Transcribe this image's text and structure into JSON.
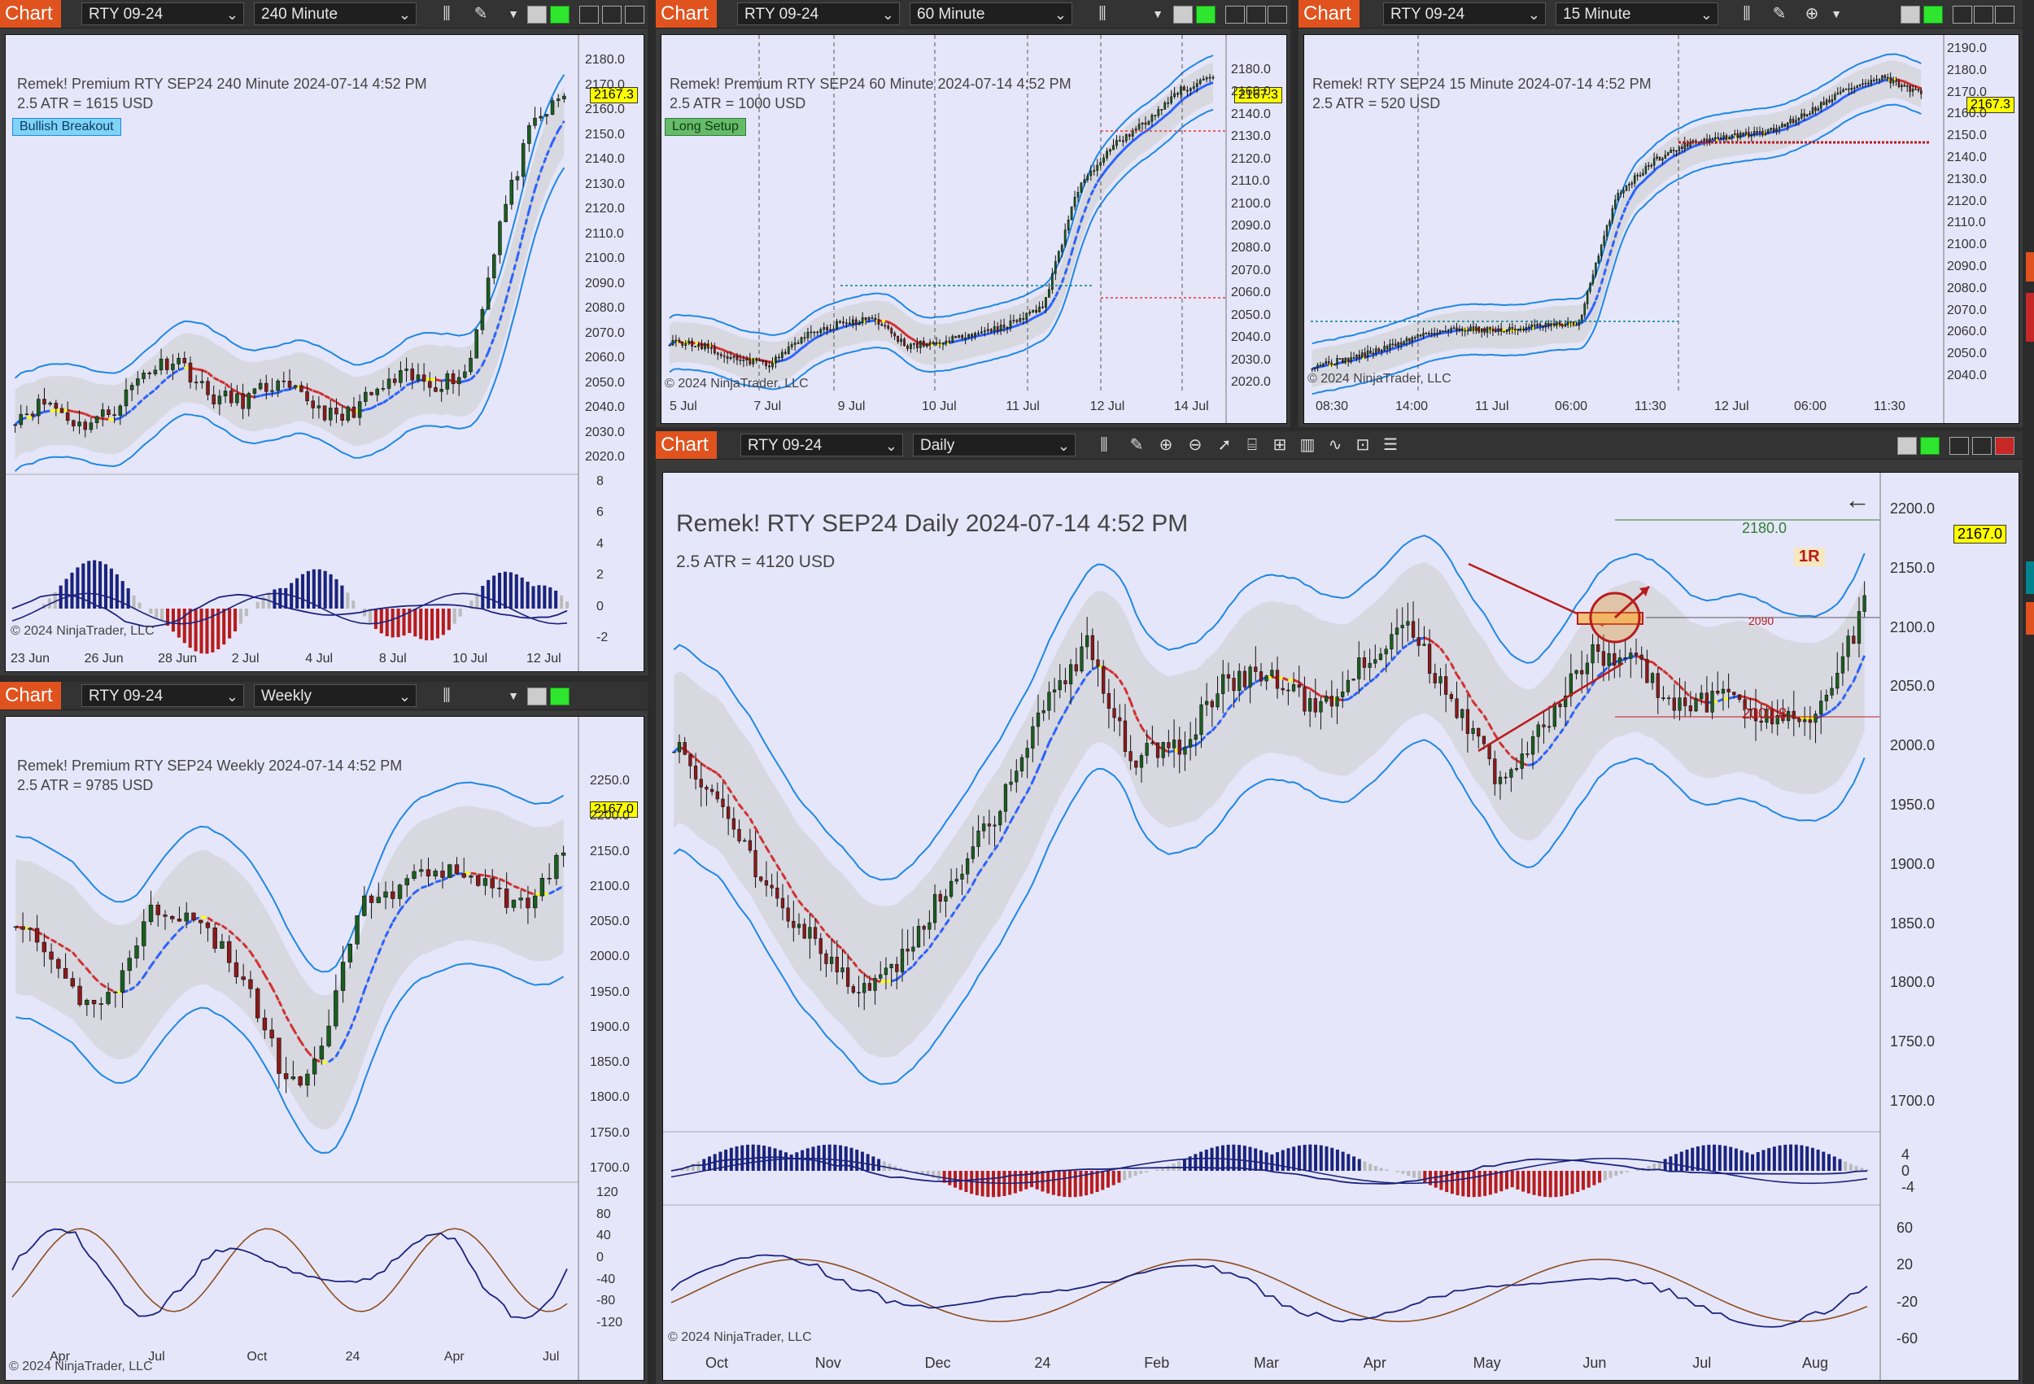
{
  "charts": [
    {
      "id": "w240",
      "tab": "Chart",
      "instrument": "RTY 09-24",
      "period": "240 Minute",
      "header": "Remek!  Premium  RTY SEP24  240 Minute  2024-07-14 4:52 PM",
      "atr": "2.5 ATR = 1615 USD",
      "badge": "Bullish Breakout",
      "price_tag": "2167.3",
      "copyright": "© 2024 NinjaTrader, LLC",
      "y_ticks": [
        "2180.0",
        "2170.0",
        "2160.0",
        "2150.0",
        "2140.0",
        "2130.0",
        "2120.0",
        "2110.0",
        "2100.0",
        "2090.0",
        "2080.0",
        "2070.0",
        "2060.0",
        "2050.0",
        "2040.0",
        "2030.0",
        "2020.0"
      ],
      "y2_ticks": [
        "8",
        "6",
        "4",
        "2",
        "0",
        "-2"
      ],
      "x_ticks": [
        "23 Jun",
        "26 Jun",
        "28 Jun",
        "2 Jul",
        "4 Jul",
        "8 Jul",
        "10 Jul",
        "12 Jul"
      ]
    },
    {
      "id": "w60",
      "tab": "Chart",
      "instrument": "RTY 09-24",
      "period": "60 Minute",
      "header": "Remek!  Premium  RTY SEP24  60 Minute  2024-07-14 4:52 PM",
      "atr": "2.5 ATR = 1000 USD",
      "badge": "Long Setup",
      "price_tag": "2167.3",
      "copyright": "© 2024 NinjaTrader, LLC",
      "y_ticks": [
        "2180.0",
        "2160.0",
        "2140.0",
        "2130.0",
        "2120.0",
        "2110.0",
        "2100.0",
        "2090.0",
        "2080.0",
        "2070.0",
        "2060.0",
        "2050.0",
        "2040.0",
        "2030.0",
        "2020.0"
      ],
      "x_ticks": [
        "5 Jul",
        "7 Jul",
        "9 Jul",
        "10 Jul",
        "11 Jul",
        "12 Jul",
        "14 Jul"
      ]
    },
    {
      "id": "w15",
      "tab": "Chart",
      "instrument": "RTY 09-24",
      "period": "15 Minute",
      "header": "Remek!  RTY SEP24  15 Minute  2024-07-14 4:52 PM",
      "atr": "2.5 ATR = 520 USD",
      "price_tag": "2167.3",
      "copyright": "© 2024 NinjaTrader, LLC",
      "y_ticks": [
        "2190.0",
        "2180.0",
        "2170.0",
        "2160.0",
        "2150.0",
        "2140.0",
        "2130.0",
        "2120.0",
        "2110.0",
        "2100.0",
        "2090.0",
        "2080.0",
        "2070.0",
        "2060.0",
        "2050.0",
        "2040.0"
      ],
      "x_ticks": [
        "08:30",
        "14:00",
        "11 Jul",
        "06:00",
        "11:30",
        "12 Jul",
        "06:00",
        "11:30"
      ]
    },
    {
      "id": "wwk",
      "tab": "Chart",
      "instrument": "RTY 09-24",
      "period": "Weekly",
      "header": "Remek!  Premium  RTY SEP24  Weekly  2024-07-14 4:52 PM",
      "atr": "2.5 ATR = 9785 USD",
      "price_tag": "2167.0",
      "copyright": "© 2024 NinjaTrader, LLC",
      "y_ticks": [
        "2250.0",
        "2200.0",
        "2150.0",
        "2100.0",
        "2050.0",
        "2000.0",
        "1950.0",
        "1900.0",
        "1850.0",
        "1800.0",
        "1750.0",
        "1700.0"
      ],
      "y2_ticks": [
        "120",
        "80",
        "40",
        "0",
        "-40",
        "-80",
        "-120"
      ],
      "x_ticks": [
        "Apr",
        "Jul",
        "Oct",
        "24",
        "Apr",
        "Jul"
      ]
    },
    {
      "id": "wday",
      "tab": "Chart",
      "instrument": "RTY 09-24",
      "period": "Daily",
      "header": "Remek!  RTY SEP24  Daily  2024-07-14 4:52 PM",
      "atr": "2.5 ATR = 4120 USD",
      "price_tag": "2167.0",
      "level_top": "2180.0",
      "level_bottom": "2000.8",
      "target_label": "1R",
      "box_label": "2090",
      "copyright": "© 2024 NinjaTrader, LLC",
      "y_ticks": [
        "2200.0",
        "2150.0",
        "2100.0",
        "2050.0",
        "2000.0",
        "1950.0",
        "1900.0",
        "1850.0",
        "1800.0",
        "1750.0",
        "1700.0"
      ],
      "y2_ticks": [
        "4",
        "0",
        "-4"
      ],
      "y3_ticks": [
        "60",
        "20",
        "-20",
        "-60"
      ],
      "x_ticks": [
        "Oct",
        "Nov",
        "Dec",
        "24",
        "Feb",
        "Mar",
        "Apr",
        "May",
        "Jun",
        "Jul",
        "Aug"
      ]
    }
  ],
  "colors": {
    "panel_bg": "#e6e6fa",
    "chart_tab": "#e0531f",
    "band_blue": "#1e88e5",
    "mid_up": "#2962ff",
    "mid_down": "#d32f2f",
    "mid_flat": "#ffff00",
    "macd_up": "#1a237e",
    "macd_down": "#b71c1c"
  },
  "icons": [
    "bars-icon",
    "draw-icon",
    "zoom-in-icon",
    "zoom-out-icon",
    "pointer-icon",
    "data-box-icon",
    "properties-icon",
    "chart-style-icon",
    "indicators-icon",
    "strategies-icon",
    "list-icon",
    "back-arrow-icon"
  ]
}
